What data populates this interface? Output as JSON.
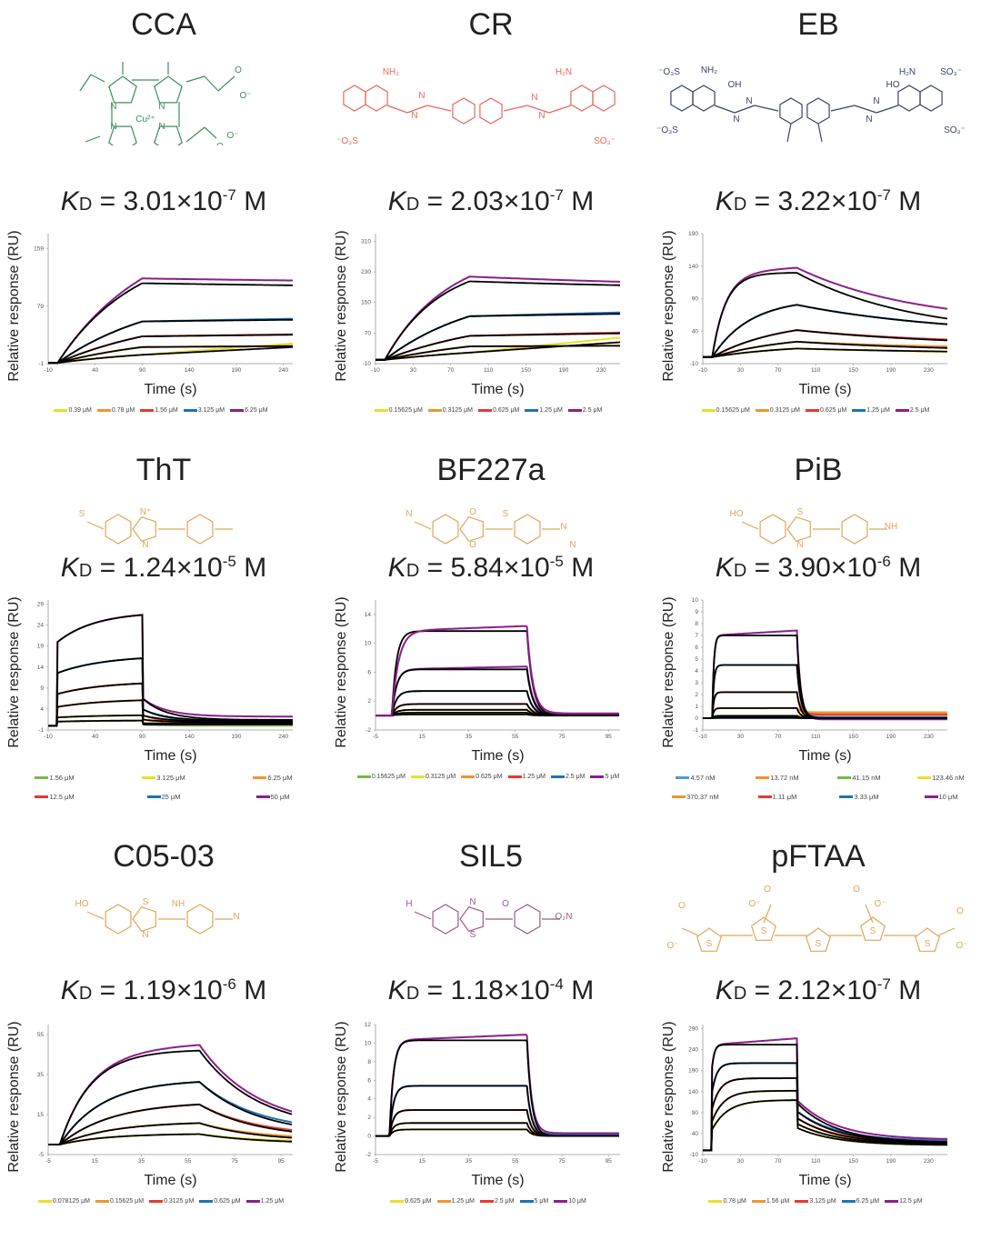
{
  "colors": {
    "fit": "#000000",
    "green": "#7ab648",
    "yellow": "#e8e02a",
    "orange": "#f0962a",
    "red": "#e8392f",
    "blue": "#1d73b8",
    "purple": "#8b1f8a",
    "lightblue": "#4a9cd6",
    "struct_green": "#3d8f5c",
    "struct_red": "#e8685e",
    "struct_navy": "#3b4370",
    "struct_gold": "#e0a65a",
    "struct_purple": "#9a5a92"
  },
  "panels": [
    {
      "name": "CCA",
      "kd_mantissa": "3.01",
      "kd_exp": "-7",
      "struct_color": "struct_green"
    },
    {
      "name": "CR",
      "kd_mantissa": "2.03",
      "kd_exp": "-7",
      "struct_color": "struct_red"
    },
    {
      "name": "EB",
      "kd_mantissa": "3.22",
      "kd_exp": "-7",
      "struct_color": "struct_navy"
    },
    {
      "name": "ThT",
      "kd_mantissa": "1.24",
      "kd_exp": "-5",
      "struct_color": "struct_gold"
    },
    {
      "name": "BF227a",
      "kd_mantissa": "5.84",
      "kd_exp": "-5",
      "struct_color": "struct_gold"
    },
    {
      "name": "PiB",
      "kd_mantissa": "3.90",
      "kd_exp": "-6",
      "struct_color": "struct_gold"
    },
    {
      "name": "C05-03",
      "kd_mantissa": "1.19",
      "kd_exp": "-6",
      "struct_color": "struct_gold"
    },
    {
      "name": "SIL5",
      "kd_mantissa": "1.18",
      "kd_exp": "-4",
      "struct_color": "struct_purple"
    },
    {
      "name": "pFTAA",
      "kd_mantissa": "2.12",
      "kd_exp": "-7",
      "struct_color": "struct_gold"
    }
  ],
  "labels": {
    "kd_symbol": "K",
    "kd_sub": "D",
    "kd_eq": " = ",
    "kd_times": "×10",
    "kd_unit": " M"
  },
  "structures": {
    "CCA": {
      "atoms": [
        "N",
        "N",
        "N",
        "N",
        "Cu²⁺",
        "O",
        "O⁻",
        "O",
        "O⁻",
        "O",
        "O⁻"
      ]
    },
    "CR": {
      "atoms": [
        "NH₂",
        "H₂N",
        "N",
        "N",
        "N",
        "N",
        "⁻O₃S",
        "SO₃⁻"
      ]
    },
    "EB": {
      "atoms": [
        "⁻O₃S",
        "NH₂",
        "OH",
        "⁻O₃S",
        "N",
        "N",
        "H₂N",
        "SO₃⁻",
        "HO",
        "N",
        "N",
        "SO₃⁻"
      ]
    },
    "ThT": {
      "atoms": [
        "S",
        "N⁺",
        "N"
      ]
    },
    "BF227a": {
      "atoms": [
        "N",
        "O",
        "O",
        "N",
        "S",
        "N"
      ]
    },
    "PiB": {
      "atoms": [
        "HO",
        "S",
        "N",
        "NH"
      ]
    },
    "C05-03": {
      "atoms": [
        "HO",
        "S",
        "N",
        "N",
        "NH"
      ]
    },
    "SIL5": {
      "atoms": [
        "H",
        "N",
        "S",
        "O₂N",
        "O"
      ]
    },
    "pFTAA": {
      "atoms": [
        "O",
        "O⁻",
        "O",
        "O⁻",
        "O",
        "O⁻",
        "O",
        "O⁻",
        "S",
        "S",
        "S",
        "S",
        "S"
      ]
    }
  },
  "chart_data": [
    {
      "type": "line",
      "title": "CCA",
      "xlabel": "Time (s)",
      "ylabel": "Relative response (RU)",
      "xlim": [
        -10,
        250
      ],
      "ylim": [
        -1,
        180
      ],
      "xticks": [
        -10,
        40,
        90,
        140,
        190,
        240
      ],
      "yticks": [
        -1,
        79,
        159
      ],
      "inject": 0,
      "stop": 90,
      "legend_cols": 5,
      "series": [
        {
          "name": "0.39 μM",
          "color": "yellow",
          "plateau": 22,
          "k": 0.008,
          "koff": 0.0,
          "jump": 0,
          "fit_end": 22,
          "data_end": 27
        },
        {
          "name": "0.78 μM",
          "color": "orange",
          "plateau": 43,
          "k": 0.008,
          "koff": 0.0005,
          "jump": 0,
          "fit_end": 39,
          "data_end": 43
        },
        {
          "name": "1.56 μM",
          "color": "red",
          "plateau": 72,
          "k": 0.008,
          "koff": 0.0008,
          "jump": 0,
          "fit_end": 56,
          "data_end": 60
        },
        {
          "name": "3.125 μM",
          "color": "blue",
          "plateau": 104,
          "k": 0.009,
          "koff": 0.0012,
          "jump": 0,
          "fit_end": 71,
          "data_end": 79
        },
        {
          "name": "6.25 μM",
          "color": "purple",
          "plateau": 168,
          "k": 0.012,
          "koff": 0.0016,
          "jump": 0,
          "fit_end": 98,
          "data_end": 105
        }
      ]
    },
    {
      "type": "line",
      "title": "CR",
      "xlabel": "Time (s)",
      "ylabel": "Relative response (RU)",
      "xlim": [
        -10,
        250
      ],
      "ylim": [
        -10,
        330
      ],
      "xticks": [
        -10,
        30,
        70,
        110,
        150,
        190,
        230
      ],
      "yticks": [
        -10,
        70,
        150,
        230,
        310
      ],
      "inject": 0,
      "stop": 90,
      "legend_cols": 5,
      "series": [
        {
          "name": "0.15625 μM",
          "color": "yellow",
          "plateau": 45,
          "k": 0.006,
          "koff": 0.0,
          "fit_end": 46,
          "data_end": 58
        },
        {
          "name": "0.3125 μM",
          "color": "orange",
          "plateau": 75,
          "k": 0.007,
          "koff": 0.0003,
          "fit_end": 70,
          "data_end": 80
        },
        {
          "name": "0.625 μM",
          "color": "red",
          "plateau": 122,
          "k": 0.008,
          "koff": 0.0012,
          "fit_end": 100,
          "data_end": 112
        },
        {
          "name": "1.25 μM",
          "color": "blue",
          "plateau": 192,
          "k": 0.01,
          "koff": 0.0017,
          "fit_end": 140,
          "data_end": 155
        },
        {
          "name": "2.5 μM",
          "color": "purple",
          "plateau": 262,
          "k": 0.017,
          "koff": 0.0026,
          "fit_end": 175,
          "data_end": 178
        }
      ]
    },
    {
      "type": "line",
      "title": "EB",
      "xlabel": "Time (s)",
      "ylabel": "Relative response (RU)",
      "xlim": [
        -10,
        250
      ],
      "ylim": [
        -10,
        190
      ],
      "xticks": [
        -10,
        30,
        70,
        110,
        150,
        190,
        230
      ],
      "yticks": [
        -10,
        40,
        90,
        140,
        190
      ],
      "inject": 0,
      "stop": 90,
      "legend_cols": 5,
      "series": [
        {
          "name": "0.15625 μM",
          "color": "yellow",
          "plateau": 20,
          "k": 0.012,
          "koff": 0.005,
          "fit_end": 5,
          "data_end": 4
        },
        {
          "name": "0.3125 μM",
          "color": "orange",
          "plateau": 36,
          "k": 0.012,
          "koff": 0.006,
          "fit_end": 8,
          "data_end": 12
        },
        {
          "name": "0.625 μM",
          "color": "red",
          "plateau": 58,
          "k": 0.014,
          "koff": 0.006,
          "fit_end": 16,
          "data_end": 18
        },
        {
          "name": "1.25 μM",
          "color": "blue",
          "plateau": 90,
          "k": 0.025,
          "koff": 0.006,
          "fit_end": 32,
          "data_end": 32
        },
        {
          "name": "2.5 μM",
          "color": "purple",
          "plateau": 130,
          "k": 0.07,
          "koff": 0.008,
          "fit_end": 32,
          "data_end": 50
        }
      ]
    },
    {
      "type": "line",
      "title": "ThT",
      "xlabel": "Time (s)",
      "ylabel": "Relative response (RU)",
      "xlim": [
        -10,
        250
      ],
      "ylim": [
        -1,
        30
      ],
      "xticks": [
        -10,
        40,
        90,
        140,
        190,
        240
      ],
      "yticks": [
        -1,
        4,
        9,
        14,
        19,
        24,
        29
      ],
      "inject": 0,
      "stop": 90,
      "legend_cols": 3,
      "series": [
        {
          "name": "1.56 μM",
          "color": "green",
          "plateau": 1.3,
          "jump": 1.0,
          "k": 0.02,
          "koff": 0.02,
          "fit_end": 0.3,
          "data_end": 0
        },
        {
          "name": "3.125 μM",
          "color": "yellow",
          "plateau": 2.6,
          "jump": 2.0,
          "k": 0.02,
          "koff": 0.02,
          "fit_end": 0.5,
          "data_end": 0.2
        },
        {
          "name": "6.25 μM",
          "color": "orange",
          "plateau": 6.4,
          "jump": 4.5,
          "k": 0.02,
          "koff": 0.02,
          "fit_end": 0.8,
          "data_end": 0.5
        },
        {
          "name": "12.5 μM",
          "color": "red",
          "plateau": 10.6,
          "jump": 7.6,
          "k": 0.02,
          "koff": 0.02,
          "fit_end": 1.0,
          "data_end": 0.6
        },
        {
          "name": "25 μM",
          "color": "blue",
          "plateau": 16.8,
          "jump": 12.6,
          "k": 0.02,
          "koff": 0.02,
          "fit_end": 1.2,
          "data_end": 1.0
        },
        {
          "name": "50 μM",
          "color": "purple",
          "plateau": 27.2,
          "jump": 20,
          "k": 0.025,
          "koff": 0.02,
          "fit_end": 1.4,
          "data_end": 2.2
        }
      ]
    },
    {
      "type": "line",
      "title": "BF227a",
      "xlabel": "Time (s)",
      "ylabel": "Relative response (RU)",
      "xlim": [
        -5,
        100
      ],
      "ylim": [
        -2,
        16
      ],
      "xticks": [
        -5,
        15,
        35,
        55,
        75,
        95
      ],
      "yticks": [
        -2,
        2,
        6,
        10,
        14
      ],
      "inject": 2,
      "stop": 60,
      "legend_cols": 6,
      "series": [
        {
          "name": "0.15625 μM",
          "color": "green",
          "plateau": 0.15,
          "k": 0.5,
          "koff": 0.4,
          "fit_end": 0,
          "data_end": 0
        },
        {
          "name": "0.3125 μM",
          "color": "yellow",
          "plateau": 0.4,
          "k": 0.5,
          "koff": 0.4,
          "fit_end": 0,
          "data_end": 0
        },
        {
          "name": "0.625 μM",
          "color": "orange",
          "plateau": 0.8,
          "k": 0.5,
          "koff": 0.4,
          "fit_end": 0,
          "data_end": 0.05
        },
        {
          "name": "1.25 μM",
          "color": "red",
          "plateau": 1.6,
          "k": 0.5,
          "koff": 0.4,
          "fit_end": 0,
          "data_end": 0.1
        },
        {
          "name": "2.5 μM",
          "color": "blue",
          "plateau": 3.4,
          "k": 0.5,
          "koff": 0.4,
          "fit_end": 0,
          "data_end": 0.15
        },
        {
          "name": "5 μM",
          "color": "purple",
          "plateau": 6.4,
          "k": 0.5,
          "koff": 0.4,
          "fit_end": 0,
          "data_end": 0.2
        }
      ],
      "extra_fit": [
        11.7
      ]
    },
    {
      "type": "line",
      "title": "PiB",
      "xlabel": "Time (s)",
      "ylabel": "Relative response (RU)",
      "xlim": [
        -10,
        250
      ],
      "ylim": [
        -1,
        10
      ],
      "xticks": [
        -10,
        30,
        70,
        110,
        150,
        190,
        230
      ],
      "yticks": [
        -1,
        0,
        1,
        2,
        3,
        4,
        5,
        6,
        7,
        8,
        9,
        10
      ],
      "inject": 0,
      "stop": 90,
      "legend_cols": 4,
      "series": [
        {
          "name": "4.57 nM",
          "color": "lightblue",
          "plateau": 0.02,
          "k": 0.6,
          "koff": 0.25,
          "fit_end": 0,
          "data_end": 0.0
        },
        {
          "name": "13.72 nM",
          "color": "orange",
          "plateau": 0.05,
          "k": 0.6,
          "koff": 0.25,
          "fit_end": 0,
          "data_end": 0.4
        },
        {
          "name": "41.15 nM",
          "color": "green",
          "plateau": 0.1,
          "k": 0.6,
          "koff": 0.25,
          "fit_end": 0,
          "data_end": 0.1
        },
        {
          "name": "123.46 nM",
          "color": "yellow",
          "plateau": 0.2,
          "k": 0.6,
          "koff": 0.25,
          "fit_end": 0,
          "data_end": 0.3
        },
        {
          "name": "370.37 nM",
          "color": "orange",
          "plateau": 0.85,
          "k": 0.6,
          "koff": 0.25,
          "fit_end": 0,
          "data_end": 0.5
        },
        {
          "name": "1.11 μM",
          "color": "red",
          "plateau": 2.2,
          "k": 0.6,
          "koff": 0.25,
          "fit_end": 0,
          "data_end": 0.3
        },
        {
          "name": "3.33 μM",
          "color": "blue",
          "plateau": 4.5,
          "k": 0.6,
          "koff": 0.25,
          "fit_end": 0,
          "data_end": 0.1
        },
        {
          "name": "10 μM",
          "color": "purple",
          "plateau": 7.0,
          "k": 0.6,
          "koff": 0.25,
          "fit_end": 0,
          "data_end": -0.1
        }
      ]
    },
    {
      "type": "line",
      "title": "C05-03",
      "xlabel": "Time (s)",
      "ylabel": "Relative response (RU)",
      "xlim": [
        -5,
        100
      ],
      "ylim": [
        -5,
        60
      ],
      "xticks": [
        -5,
        15,
        35,
        55,
        75,
        95
      ],
      "yticks": [
        -5,
        15,
        35,
        55
      ],
      "inject": 0,
      "stop": 60,
      "legend_cols": 5,
      "series": [
        {
          "name": "0.078125 μM",
          "color": "yellow",
          "plateau": 5.5,
          "k": 0.05,
          "koff": 0.04,
          "fit_end": 0.5,
          "data_end": 1.2
        },
        {
          "name": "0.15625 μM",
          "color": "orange",
          "plateau": 11.5,
          "k": 0.045,
          "koff": 0.04,
          "fit_end": 1.5,
          "data_end": 2.5
        },
        {
          "name": "0.3125 μM",
          "color": "red",
          "plateau": 21.5,
          "k": 0.045,
          "koff": 0.04,
          "fit_end": 3,
          "data_end": 4
        },
        {
          "name": "0.625 μM",
          "color": "blue",
          "plateau": 32.5,
          "k": 0.055,
          "koff": 0.04,
          "fit_end": 4.5,
          "data_end": 6
        },
        {
          "name": "1.25 μM",
          "color": "purple",
          "plateau": 47.5,
          "k": 0.075,
          "koff": 0.04,
          "fit_end": 7,
          "data_end": 8
        }
      ]
    },
    {
      "type": "line",
      "title": "SIL5",
      "xlabel": "Time (s)",
      "ylabel": "Relative response (RU)",
      "xlim": [
        -5,
        100
      ],
      "ylim": [
        -2,
        12
      ],
      "xticks": [
        -5,
        15,
        35,
        55,
        75,
        95
      ],
      "yticks": [
        -2,
        0,
        2,
        4,
        6,
        8,
        10,
        12
      ],
      "inject": 1,
      "stop": 60,
      "legend_cols": 5,
      "series": [
        {
          "name": "0.625 μM",
          "color": "yellow",
          "plateau": 0.7,
          "k": 0.6,
          "koff": 0.5,
          "fit_end": 0,
          "data_end": 0
        },
        {
          "name": "1.25 μM",
          "color": "orange",
          "plateau": 1.4,
          "k": 0.6,
          "koff": 0.5,
          "fit_end": 0,
          "data_end": 0.05
        },
        {
          "name": "2.5 μM",
          "color": "red",
          "plateau": 2.8,
          "k": 0.6,
          "koff": 0.5,
          "fit_end": 0,
          "data_end": 0.1
        },
        {
          "name": "5 μM",
          "color": "blue",
          "plateau": 5.4,
          "k": 0.6,
          "koff": 0.5,
          "fit_end": 0,
          "data_end": 0.2
        },
        {
          "name": "10 μM",
          "color": "purple",
          "plateau": 10.3,
          "k": 0.6,
          "koff": 0.5,
          "fit_end": 0,
          "data_end": 0.3
        }
      ]
    },
    {
      "type": "line",
      "title": "pFTAA",
      "xlabel": "Time (s)",
      "ylabel": "Relative response (RU)",
      "xlim": [
        -10,
        250
      ],
      "ylim": [
        -10,
        300
      ],
      "xticks": [
        -10,
        30,
        70,
        110,
        150,
        190,
        230
      ],
      "yticks": [
        -10,
        40,
        90,
        140,
        190,
        240,
        290
      ],
      "inject": 0,
      "stop": 90,
      "legend_cols": 5,
      "series": [
        {
          "name": "0.78 μM",
          "color": "yellow",
          "plateau": 120,
          "jump": 50,
          "k": 0.06,
          "koff": 0.012,
          "fit_end": 12,
          "data_end": 12
        },
        {
          "name": "1.56 μM",
          "color": "orange",
          "plateau": 142,
          "jump": 70,
          "k": 0.08,
          "koff": 0.012,
          "fit_end": 14,
          "data_end": 16
        },
        {
          "name": "3.125 μM",
          "color": "red",
          "plateau": 172,
          "jump": 100,
          "k": 0.12,
          "koff": 0.012,
          "fit_end": 16,
          "data_end": 18
        },
        {
          "name": "6.25 μM",
          "color": "blue",
          "plateau": 208,
          "jump": 140,
          "k": 0.2,
          "koff": 0.012,
          "fit_end": 18,
          "data_end": 22
        },
        {
          "name": "12.5 μM",
          "color": "purple",
          "plateau": 252,
          "jump": 200,
          "k": 0.4,
          "koff": 0.012,
          "fit_end": 18,
          "data_end": 25
        }
      ]
    }
  ]
}
